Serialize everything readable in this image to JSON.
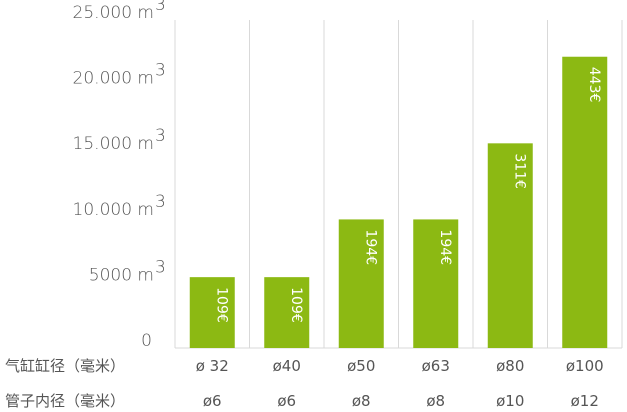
{
  "chart_data": {
    "type": "bar",
    "y_unit": "m",
    "y_unit_exponent": "3",
    "y_ticks": [
      {
        "value": 0,
        "label": "0",
        "unit": false
      },
      {
        "value": 5000,
        "label": "5000 m",
        "unit": true
      },
      {
        "value": 10000,
        "label": "10.000 m",
        "unit": true
      },
      {
        "value": 15000,
        "label": "15.000 m",
        "unit": true
      },
      {
        "value": 20000,
        "label": "20.000 m",
        "unit": true
      },
      {
        "value": 25000,
        "label": "25.000 m",
        "unit": true
      }
    ],
    "ylim": [
      0,
      25000
    ],
    "values": [
      5400,
      5400,
      9800,
      9800,
      15600,
      22200
    ],
    "price_labels": [
      "109€",
      "109€",
      "194€",
      "194€",
      "311€",
      "443€"
    ],
    "row1": {
      "label": "气缸缸径（毫米）",
      "categories": [
        "ø 32",
        "ø40",
        "ø50",
        "ø63",
        "ø80",
        "ø100"
      ]
    },
    "row2": {
      "label": "管子内径（毫米）",
      "categories": [
        "ø6",
        "ø6",
        "ø8",
        "ø8",
        "ø10",
        "ø12"
      ]
    },
    "bar_color": "#8cb913",
    "grid": "vertical lines between categories"
  }
}
